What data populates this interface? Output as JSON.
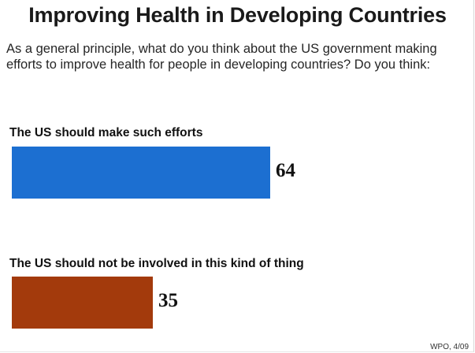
{
  "title": "Improving Health in Developing Countries",
  "question": "As a general principle, what do you think about the US government making efforts to improve health for people in developing countries? Do you think:",
  "source": "WPO, 4/09",
  "colors": {
    "bar1": "#1c6fd1",
    "bar2": "#a33a0c"
  },
  "chart_data": {
    "type": "bar",
    "orientation": "horizontal",
    "categories": [
      "The US should make such efforts",
      "The US should not be involved in this kind of thing"
    ],
    "values": [
      64,
      35
    ],
    "value_labels": [
      "64",
      "35"
    ],
    "colors": [
      "#1c6fd1",
      "#a33a0c"
    ],
    "title": "Improving Health in Developing Countries",
    "xlim": [
      0,
      100
    ],
    "grid": false,
    "legend": "none"
  }
}
